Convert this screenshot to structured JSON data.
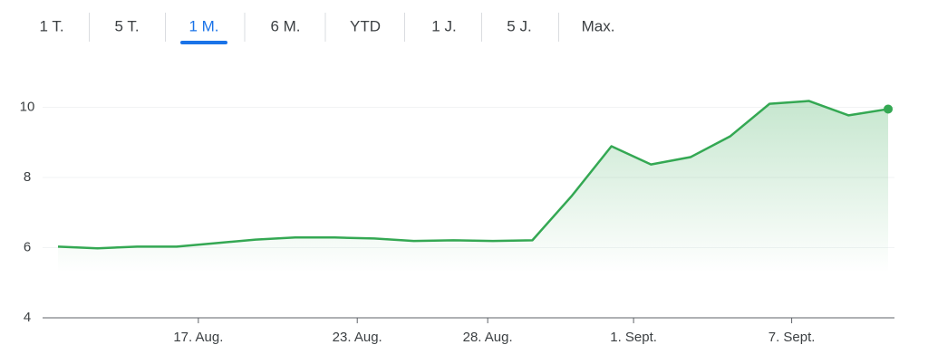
{
  "tabs": [
    "1 T.",
    "5 T.",
    "1 M.",
    "6 M.",
    "YTD",
    "1 J.",
    "5 J.",
    "Max."
  ],
  "selected_tab": 2,
  "chart_data": {
    "type": "line",
    "x": [
      0,
      1,
      2,
      3,
      4,
      5,
      6,
      7,
      8,
      9,
      10,
      11,
      12,
      13,
      14,
      15,
      16,
      17,
      18,
      19,
      20,
      21
    ],
    "series": [
      {
        "color": "#34a853",
        "values": [
          6.03,
          5.98,
          6.03,
          6.03,
          6.13,
          6.23,
          6.29,
          6.29,
          6.26,
          6.19,
          6.21,
          6.19,
          6.21,
          7.48,
          8.89,
          8.37,
          8.58,
          9.17,
          10.1,
          10.18,
          9.77,
          9.95
        ]
      }
    ],
    "xlim": [
      -0.39,
      21.16
    ],
    "xticks": [
      {
        "value": 3.55,
        "label": "17. Aug."
      },
      {
        "value": 7.57,
        "label": "23. Aug."
      },
      {
        "value": 10.87,
        "label": "28. Aug."
      },
      {
        "value": 14.56,
        "label": "1. Sept."
      },
      {
        "value": 18.56,
        "label": "7. Sept."
      }
    ],
    "ylim": [
      4,
      10.8
    ],
    "yticks": [
      4,
      6,
      8,
      10
    ],
    "grid": true
  }
}
